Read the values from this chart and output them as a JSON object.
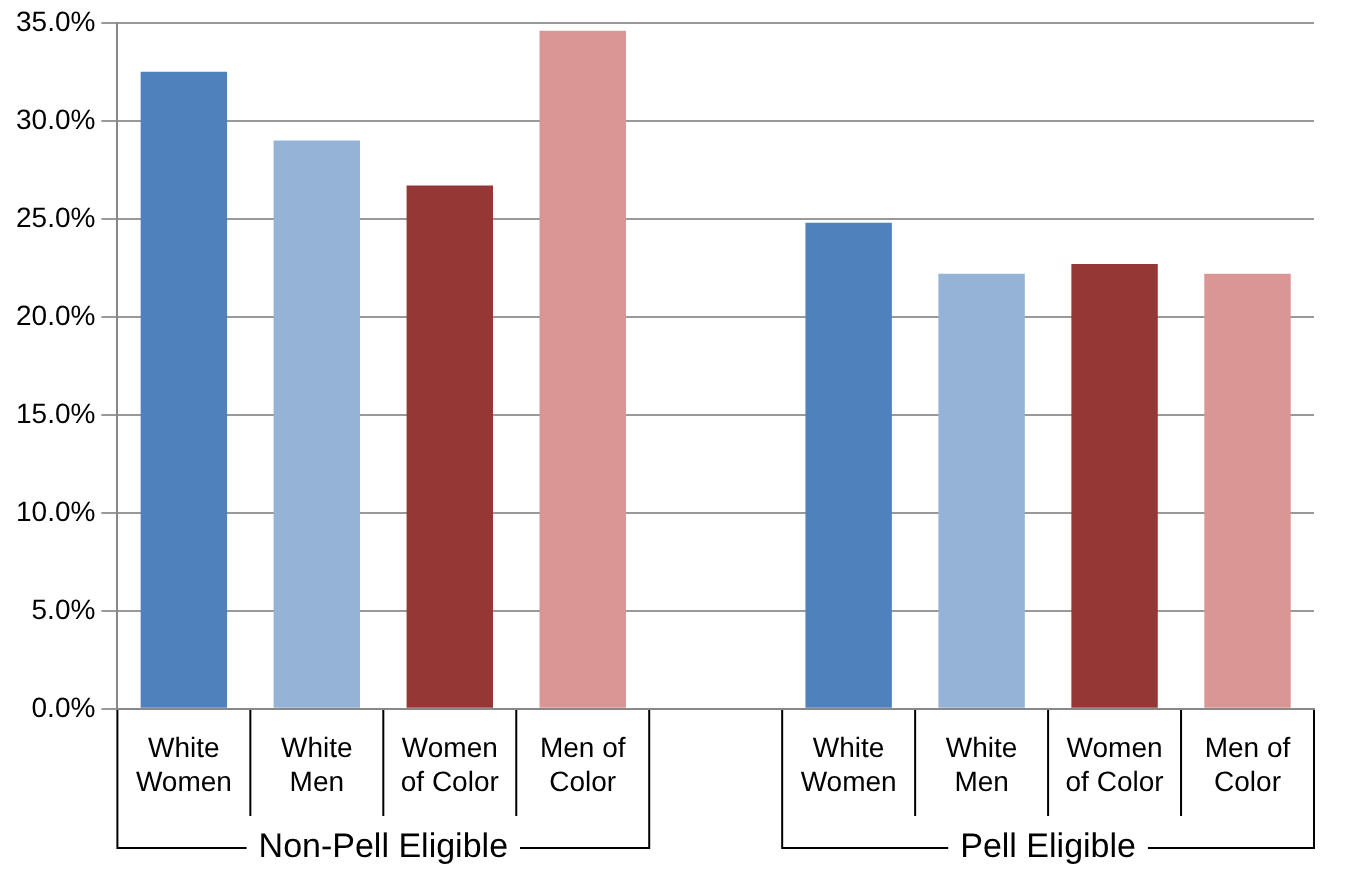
{
  "chart_data": {
    "type": "bar",
    "categories": [
      "White\nWomen",
      "White\nMen",
      "Women\nof Color",
      "Men of\nColor",
      null,
      "White\nWomen",
      "White\nMen",
      "Women\nof Color",
      "Men of\nColor"
    ],
    "values": [
      32.5,
      29.0,
      26.7,
      34.6,
      null,
      24.8,
      22.2,
      22.7,
      22.2
    ],
    "colors": [
      "#4f81bd",
      "#95b3d7",
      "#953735",
      "#d99694",
      null,
      "#4f81bd",
      "#95b3d7",
      "#953735",
      "#d99694"
    ],
    "ylim": [
      0,
      35
    ],
    "yticks": [
      {
        "value": 0,
        "label": "0.0%"
      },
      {
        "value": 5,
        "label": "5.0%"
      },
      {
        "value": 10,
        "label": "10.0%"
      },
      {
        "value": 15,
        "label": "15.0%"
      },
      {
        "value": 20,
        "label": "20.0%"
      },
      {
        "value": 25,
        "label": "25.0%"
      },
      {
        "value": 30,
        "label": "30.0%"
      },
      {
        "value": 35,
        "label": "35.0%"
      }
    ],
    "grid": "y",
    "legend": false,
    "annotations": [
      "Non-Pell Eligible",
      "Pell Eligible"
    ]
  }
}
